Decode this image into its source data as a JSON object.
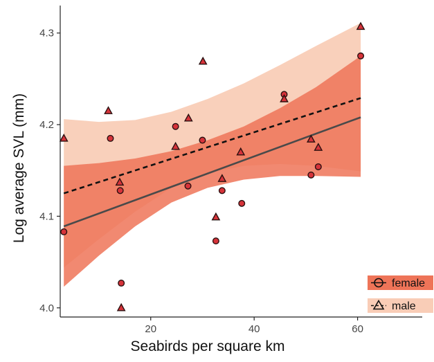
{
  "chart_data": {
    "type": "scatter",
    "title": "",
    "xlabel": "Seabirds per square km",
    "ylabel": "Log average SVL (mm)",
    "xlim": [
      2.5,
      72.5
    ],
    "ylim": [
      3.99,
      4.33
    ],
    "x_ticks": [
      20,
      40,
      60
    ],
    "y_ticks": [
      4.0,
      4.1,
      4.2,
      4.3
    ],
    "x_tick_labels": [
      "20",
      "40",
      "60"
    ],
    "y_tick_labels": [
      "4.0",
      "4.1",
      "4.2",
      "4.3"
    ],
    "grid": false,
    "legend_position": "bottom-right",
    "series": [
      {
        "name": "female",
        "marker": "circle",
        "line_style": "solid",
        "point_color": "#d6333a",
        "band_color": "#ee7458",
        "points": [
          {
            "x": 3.2,
            "y": 4.083
          },
          {
            "x": 12.2,
            "y": 4.185
          },
          {
            "x": 14.1,
            "y": 4.128
          },
          {
            "x": 14.3,
            "y": 4.027
          },
          {
            "x": 24.8,
            "y": 4.198
          },
          {
            "x": 27.2,
            "y": 4.133
          },
          {
            "x": 30.0,
            "y": 4.183
          },
          {
            "x": 32.6,
            "y": 4.073
          },
          {
            "x": 33.8,
            "y": 4.128
          },
          {
            "x": 37.6,
            "y": 4.114
          },
          {
            "x": 45.8,
            "y": 4.233
          },
          {
            "x": 51.0,
            "y": 4.145
          },
          {
            "x": 52.4,
            "y": 4.154
          },
          {
            "x": 60.6,
            "y": 4.275
          }
        ],
        "fit": {
          "x": [
            3.2,
            60.6
          ],
          "y": [
            4.089,
            4.208
          ]
        },
        "band": {
          "x": [
            3.2,
            10,
            17,
            24,
            31,
            38,
            45,
            52,
            60.6
          ],
          "lower": [
            4.023,
            4.057,
            4.089,
            4.115,
            4.131,
            4.14,
            4.144,
            4.144,
            4.143
          ],
          "upper": [
            4.155,
            4.158,
            4.163,
            4.171,
            4.183,
            4.198,
            4.218,
            4.241,
            4.275
          ]
        }
      },
      {
        "name": "male",
        "marker": "triangle",
        "line_style": "dashed",
        "point_color": "#d6333a",
        "band_color": "#f9cdb7",
        "points": [
          {
            "x": 3.2,
            "y": 4.185
          },
          {
            "x": 11.8,
            "y": 4.215
          },
          {
            "x": 14.0,
            "y": 4.137
          },
          {
            "x": 14.3,
            "y": 4.0
          },
          {
            "x": 24.8,
            "y": 4.176
          },
          {
            "x": 27.3,
            "y": 4.207
          },
          {
            "x": 30.1,
            "y": 4.269
          },
          {
            "x": 32.6,
            "y": 4.099
          },
          {
            "x": 33.8,
            "y": 4.141
          },
          {
            "x": 37.4,
            "y": 4.17
          },
          {
            "x": 45.8,
            "y": 4.228
          },
          {
            "x": 51.0,
            "y": 4.184
          },
          {
            "x": 52.4,
            "y": 4.175
          },
          {
            "x": 60.6,
            "y": 4.307
          }
        ],
        "fit": {
          "x": [
            3.2,
            60.6
          ],
          "y": [
            4.125,
            4.229
          ]
        },
        "band": {
          "x": [
            3.2,
            10,
            17,
            24,
            31,
            38,
            45,
            52,
            60.6
          ],
          "lower": [
            4.044,
            4.075,
            4.105,
            4.131,
            4.147,
            4.155,
            4.157,
            4.155,
            4.149
          ],
          "upper": [
            4.206,
            4.203,
            4.205,
            4.214,
            4.228,
            4.245,
            4.265,
            4.286,
            4.311
          ]
        }
      }
    ]
  }
}
